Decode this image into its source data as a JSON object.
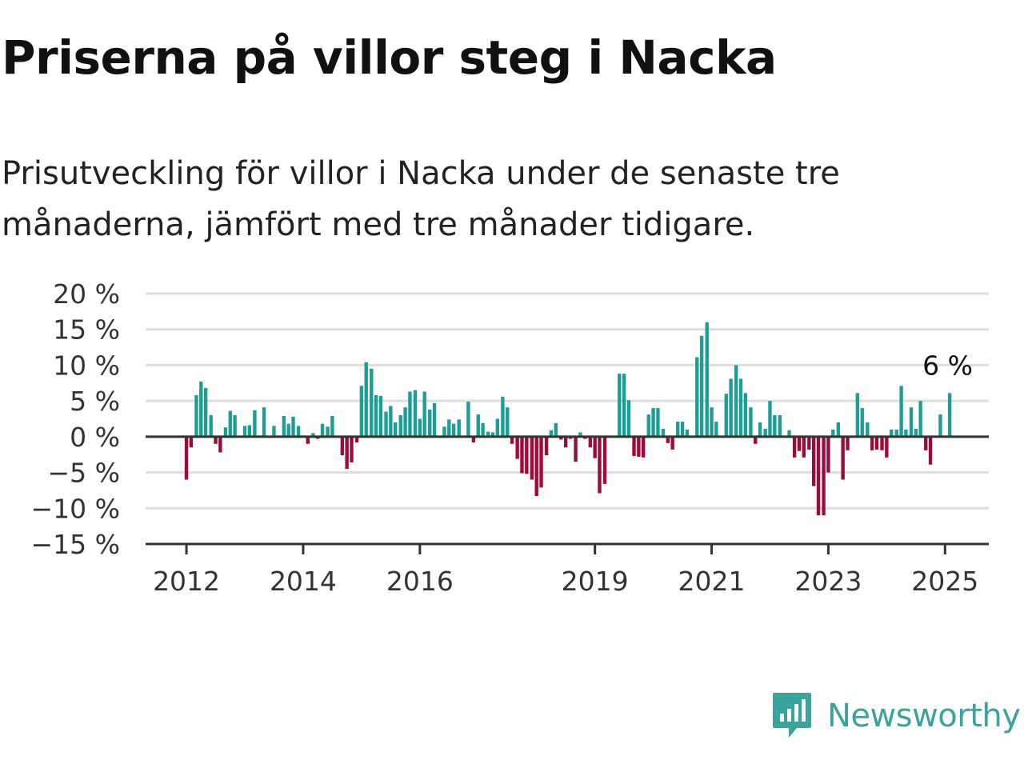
{
  "title": "Priserna på villor steg i Nacka",
  "subtitle": "Prisutveckling för villor i Nacka under de senaste tre månaderna, jämfört med tre månader tidigare.",
  "brand": {
    "name": "Newsworthy",
    "color": "#3aa39b",
    "icon": "newsworthy-logo-icon"
  },
  "colors": {
    "positive": "#1a9e95",
    "negative": "#9e0a3b",
    "grid": "#dddddd",
    "axis": "#333333"
  },
  "chart_data": {
    "type": "bar",
    "title": "Priserna på villor steg i Nacka",
    "xlabel": "",
    "ylabel": "",
    "ylim": [
      -15,
      20
    ],
    "xlim": [
      2011.3,
      2025.75
    ],
    "grid": true,
    "legend": "none",
    "y_ticks": [
      {
        "value": 20,
        "label": "20 %"
      },
      {
        "value": 15,
        "label": "15 %"
      },
      {
        "value": 10,
        "label": "10 %"
      },
      {
        "value": 5,
        "label": "5 %"
      },
      {
        "value": 0,
        "label": "0 %"
      },
      {
        "value": -5,
        "label": "−5 %"
      },
      {
        "value": -10,
        "label": "−10 %"
      },
      {
        "value": -15,
        "label": "−15 %"
      }
    ],
    "x_ticks": [
      {
        "value": 2012,
        "label": "2012"
      },
      {
        "value": 2014,
        "label": "2014"
      },
      {
        "value": 2016,
        "label": "2016"
      },
      {
        "value": 2019,
        "label": "2019"
      },
      {
        "value": 2021,
        "label": "2021"
      },
      {
        "value": 2023,
        "label": "2023"
      },
      {
        "value": 2025,
        "label": "2025"
      }
    ],
    "annotation": {
      "x": 2025.08,
      "y": 6,
      "label": "6 %"
    },
    "series": [
      {
        "name": "",
        "x": [
          2012.0,
          2012.08,
          2012.17,
          2012.25,
          2012.33,
          2012.42,
          2012.5,
          2012.58,
          2012.67,
          2012.75,
          2012.83,
          2012.92,
          2013.0,
          2013.08,
          2013.17,
          2013.25,
          2013.33,
          2013.42,
          2013.5,
          2013.58,
          2013.67,
          2013.75,
          2013.83,
          2013.92,
          2014.0,
          2014.08,
          2014.17,
          2014.25,
          2014.33,
          2014.42,
          2014.5,
          2014.58,
          2014.67,
          2014.75,
          2014.83,
          2014.92,
          2015.0,
          2015.08,
          2015.17,
          2015.25,
          2015.33,
          2015.42,
          2015.5,
          2015.58,
          2015.67,
          2015.75,
          2015.83,
          2015.92,
          2016.0,
          2016.08,
          2016.17,
          2016.25,
          2016.33,
          2016.42,
          2016.5,
          2016.58,
          2016.67,
          2016.75,
          2016.83,
          2016.92,
          2017.0,
          2017.08,
          2017.17,
          2017.25,
          2017.33,
          2017.42,
          2017.5,
          2017.58,
          2017.67,
          2017.75,
          2017.83,
          2017.92,
          2018.0,
          2018.08,
          2018.17,
          2018.25,
          2018.33,
          2018.42,
          2018.5,
          2018.58,
          2018.67,
          2018.75,
          2018.83,
          2018.92,
          2019.0,
          2019.08,
          2019.17,
          2019.25,
          2019.33,
          2019.42,
          2019.5,
          2019.58,
          2019.67,
          2019.75,
          2019.83,
          2019.92,
          2020.0,
          2020.08,
          2020.17,
          2020.25,
          2020.33,
          2020.42,
          2020.5,
          2020.58,
          2020.67,
          2020.75,
          2020.83,
          2020.92,
          2021.0,
          2021.08,
          2021.17,
          2021.25,
          2021.33,
          2021.42,
          2021.5,
          2021.58,
          2021.67,
          2021.75,
          2021.83,
          2021.92,
          2022.0,
          2022.08,
          2022.17,
          2022.25,
          2022.33,
          2022.42,
          2022.5,
          2022.58,
          2022.67,
          2022.75,
          2022.83,
          2022.92,
          2023.0,
          2023.08,
          2023.17,
          2023.25,
          2023.33,
          2023.42,
          2023.5,
          2023.58,
          2023.67,
          2023.75,
          2023.83,
          2023.92,
          2024.0,
          2024.08,
          2024.17,
          2024.25,
          2024.33,
          2024.42,
          2024.5,
          2024.58,
          2024.67,
          2024.75,
          2024.83,
          2024.92,
          2025.0,
          2025.08
        ],
        "values": [
          -6,
          -1.5,
          5.8,
          7.7,
          6.8,
          3,
          -1,
          -2.2,
          1.3,
          3.6,
          3,
          0,
          1.5,
          1.6,
          3.7,
          0,
          4.1,
          0,
          1.5,
          0,
          2.9,
          1.8,
          2.8,
          1.5,
          0,
          -1,
          0.5,
          -0.3,
          1.8,
          1.4,
          2.9,
          0,
          -2.6,
          -4.5,
          -3.6,
          -0.8,
          7.1,
          10.4,
          9.5,
          5.8,
          5.7,
          3.5,
          4.3,
          2,
          3,
          4.1,
          6.3,
          6.5,
          2.5,
          6.3,
          3.8,
          4.7,
          0,
          1.4,
          2.4,
          1.8,
          2.4,
          0,
          4.9,
          -0.8,
          3.1,
          1.9,
          0.7,
          0.6,
          2.5,
          5.6,
          4.1,
          -1,
          -3.1,
          -5.1,
          -5.2,
          -6,
          -8.3,
          -7.1,
          -2.6,
          0.9,
          1.9,
          -0.4,
          -1.5,
          -0.3,
          -3.5,
          0.6,
          -0.3,
          -1.5,
          -3,
          -7.9,
          -6.6,
          0,
          0,
          8.8,
          8.8,
          5.1,
          -2.7,
          -2.8,
          -2.9,
          3.1,
          4,
          4,
          1.1,
          -0.9,
          -1.8,
          2.1,
          2.1,
          1,
          0,
          11.1,
          14.1,
          16,
          4.1,
          2.1,
          0,
          6,
          8.1,
          10,
          8.1,
          6.1,
          4.1,
          -1,
          2,
          1.1,
          5,
          3,
          3,
          0,
          0.9,
          -2.9,
          -2,
          -2.9,
          -1.8,
          -6.9,
          -11,
          -11,
          -5,
          1,
          2,
          -6,
          -1.9,
          0,
          6.1,
          4,
          2,
          -1.9,
          -1.8,
          -1.9,
          -2.9,
          1,
          1,
          7.1,
          1,
          4.1,
          1.1,
          5,
          -1.9,
          -3.9,
          0,
          3.1,
          0,
          6.1
        ]
      }
    ]
  }
}
